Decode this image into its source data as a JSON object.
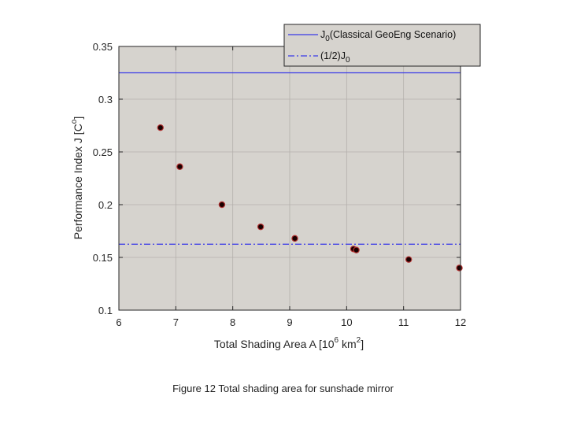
{
  "figure": {
    "caption": "Figure 12 Total shading area for sunshade mirror"
  },
  "chart_data": {
    "type": "scatter",
    "xlabel_main": "Total Shading Area A [10",
    "xlabel_sup1": "6",
    "xlabel_mid": " km",
    "xlabel_sup2": "2",
    "xlabel_end": "]",
    "ylabel_main": "Performance Index J [C",
    "ylabel_sup": "o",
    "ylabel_end": "]",
    "xlim": [
      6,
      12
    ],
    "ylim": [
      0.1,
      0.35
    ],
    "xticks": [
      6,
      7,
      8,
      9,
      10,
      11,
      12
    ],
    "xtick_labels": [
      "6",
      "7",
      "8",
      "9",
      "10",
      "11",
      "12"
    ],
    "yticks": [
      0.1,
      0.15,
      0.2,
      0.25,
      0.3,
      0.35
    ],
    "ytick_labels": [
      "0.1",
      "0.15",
      "0.2",
      "0.25",
      "0.3",
      "0.35"
    ],
    "grid": true,
    "background_color": "#d6d3ce",
    "points": {
      "x": [
        6.73,
        7.07,
        7.81,
        8.49,
        9.09,
        10.12,
        10.17,
        11.09,
        11.98
      ],
      "y": [
        0.273,
        0.236,
        0.2,
        0.179,
        0.168,
        0.158,
        0.157,
        0.148,
        0.14
      ],
      "marker_face": "#1a0000",
      "marker_edge": "#b03030"
    },
    "reference_lines": [
      {
        "name_main": "J",
        "name_sub": "0",
        "name_tail": "(Classical GeoEng Scenario)",
        "y": 0.325,
        "style": "solid",
        "color": "#3a3ae8"
      },
      {
        "name_main": "(1/2)J",
        "name_sub": "0",
        "name_tail": "",
        "y": 0.1625,
        "style": "dashdot",
        "color": "#3a3ae8"
      }
    ],
    "legend_position": "top-right"
  }
}
